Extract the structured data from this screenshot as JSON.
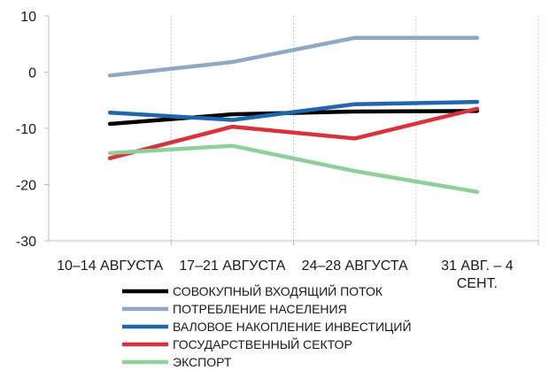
{
  "chart_data": {
    "type": "line",
    "categories": [
      [
        "10–14 АВГУСТА"
      ],
      [
        "17–21 АВГУСТА"
      ],
      [
        "24–28 АВГУСТА"
      ],
      [
        "31 АВГ. – 4",
        "СЕНТ."
      ]
    ],
    "ylim": [
      -30,
      10
    ],
    "y_ticks": [
      10,
      0,
      -10,
      -20,
      -30
    ],
    "grid": "vertical dashed",
    "legend": "bottom",
    "series": [
      {
        "name": "СОВОКУПНЫЙ ВХОДЯЩИЙ ПОТОК",
        "color": "#000000",
        "values": [
          -9.2,
          -7.5,
          -7.0,
          -6.9
        ]
      },
      {
        "name": "ПОТРЕБЛЕНИЕ НАСЕЛЕНИЯ",
        "color": "#8ea9c1",
        "values": [
          -0.6,
          1.8,
          6.1,
          6.1
        ]
      },
      {
        "name": "ВАЛОВОЕ НАКОПЛЕНИЕ ИНВЕСТИЦИЙ",
        "color": "#1f66b1",
        "values": [
          -7.2,
          -8.5,
          -5.7,
          -5.3
        ]
      },
      {
        "name": "ГОСУДАРСТВЕННЫЙ СЕКТОР",
        "color": "#d9323e",
        "values": [
          -15.3,
          -9.7,
          -11.8,
          -6.5
        ]
      },
      {
        "name": "ЭКСПОРТ",
        "color": "#8fcf9c",
        "values": [
          -14.4,
          -13.1,
          -17.6,
          -21.3
        ]
      }
    ]
  }
}
